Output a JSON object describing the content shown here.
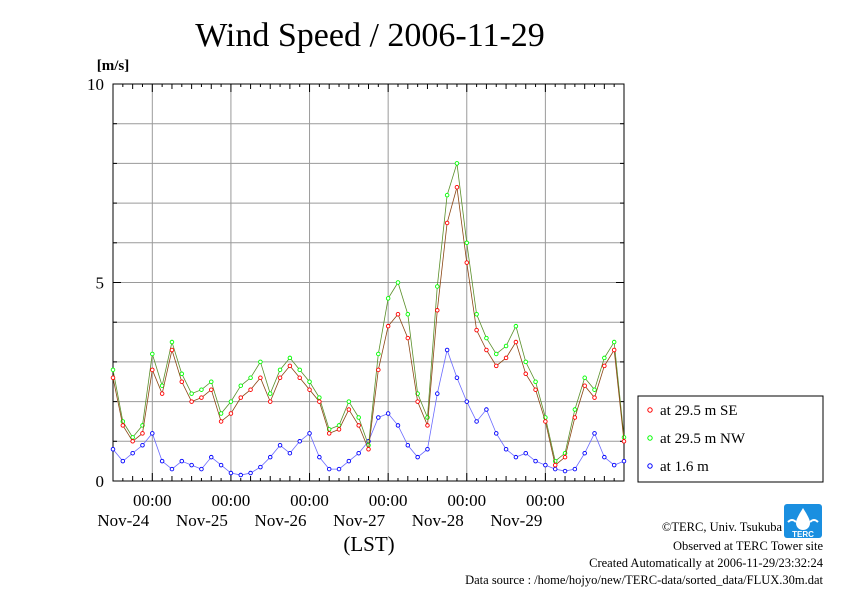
{
  "chart_data": {
    "type": "line",
    "title": "Wind Speed / 2006-11-29",
    "ylabel": "[m/s]",
    "xlabel": "(LST)",
    "ylim": [
      0,
      10
    ],
    "yticks": [
      0,
      5,
      10
    ],
    "xlim": [
      "2006-11-23 12:00",
      "2006-11-30 00:00"
    ],
    "xtick_time_label": "00:00",
    "xticks": [
      "2006-11-24",
      "2006-11-25",
      "2006-11-26",
      "2006-11-27",
      "2006-11-28",
      "2006-11-29"
    ],
    "day_labels": [
      "Nov-24",
      "Nov-25",
      "Nov-26",
      "Nov-27",
      "Nov-28",
      "Nov-29"
    ],
    "grid": true,
    "legend_position": "right",
    "x_hours": [
      0,
      3,
      6,
      9,
      12,
      15,
      18,
      21,
      24,
      27,
      30,
      33,
      36,
      39,
      42,
      45,
      48,
      51,
      54,
      57,
      60,
      63,
      66,
      69,
      72,
      75,
      78,
      81,
      84,
      87,
      90,
      93,
      96,
      99,
      102,
      105,
      108,
      111,
      114,
      117,
      120,
      123,
      126,
      129,
      132,
      135,
      138,
      141,
      144,
      147,
      150,
      153,
      156
    ],
    "x_unit": "hours after 2006-11-23 12:00",
    "series": [
      {
        "name": "at 29.5 m SE",
        "color": "#ff0000",
        "values": [
          2.6,
          1.4,
          1.0,
          1.2,
          2.8,
          2.2,
          3.3,
          2.5,
          2.0,
          2.1,
          2.3,
          1.5,
          1.7,
          2.1,
          2.3,
          2.6,
          2.0,
          2.6,
          2.9,
          2.6,
          2.3,
          2.0,
          1.2,
          1.3,
          1.8,
          1.4,
          0.8,
          2.8,
          3.9,
          4.2,
          3.6,
          2.0,
          1.4,
          4.3,
          6.5,
          7.4,
          5.5,
          3.8,
          3.3,
          2.9,
          3.1,
          3.5,
          2.7,
          2.3,
          1.5,
          0.4,
          0.6,
          1.6,
          2.4,
          2.1,
          2.9,
          3.3,
          1.0
        ]
      },
      {
        "name": "at 29.5 m NW",
        "color": "#00ff00",
        "values": [
          2.8,
          1.5,
          1.1,
          1.4,
          3.2,
          2.4,
          3.5,
          2.7,
          2.2,
          2.3,
          2.5,
          1.7,
          2.0,
          2.4,
          2.6,
          3.0,
          2.2,
          2.8,
          3.1,
          2.8,
          2.5,
          2.1,
          1.3,
          1.4,
          2.0,
          1.6,
          0.9,
          3.2,
          4.6,
          5.0,
          4.2,
          2.2,
          1.6,
          4.9,
          7.2,
          8.0,
          6.0,
          4.2,
          3.6,
          3.2,
          3.4,
          3.9,
          3.0,
          2.5,
          1.6,
          0.5,
          0.7,
          1.8,
          2.6,
          2.3,
          3.1,
          3.5,
          1.1
        ]
      },
      {
        "name": "at 1.6 m",
        "color": "#0000ff",
        "values": [
          0.8,
          0.5,
          0.7,
          0.9,
          1.2,
          0.5,
          0.3,
          0.5,
          0.4,
          0.3,
          0.6,
          0.4,
          0.2,
          0.15,
          0.2,
          0.35,
          0.6,
          0.9,
          0.7,
          1.0,
          1.2,
          0.6,
          0.3,
          0.3,
          0.5,
          0.7,
          1.0,
          1.6,
          1.7,
          1.4,
          0.9,
          0.6,
          0.8,
          2.2,
          3.3,
          2.6,
          2.0,
          1.5,
          1.8,
          1.2,
          0.8,
          0.6,
          0.7,
          0.5,
          0.4,
          0.3,
          0.25,
          0.3,
          0.7,
          1.2,
          0.6,
          0.4,
          0.5
        ]
      }
    ]
  },
  "footer": {
    "copyright": "©TERC, Univ. Tsukuba",
    "site": "Observed at TERC Tower site",
    "created": "Created Automatically at 2006-11-29/23:32:24",
    "source": "Data source : /home/hojyo/new/TERC-data/sorted_data/FLUX.30m.dat"
  },
  "logo": {
    "text": "TERC",
    "color": "#1a8fe0"
  }
}
